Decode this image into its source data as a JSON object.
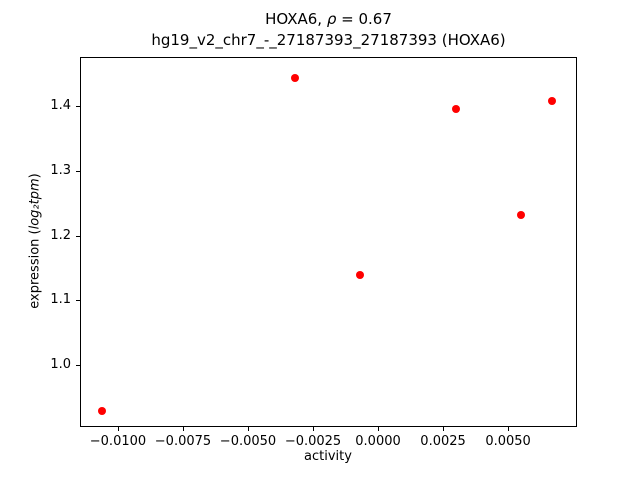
{
  "figure": {
    "title_parts": {
      "prefix": "HOXA6, ",
      "rho": "ρ",
      "suffix": " = 0.67"
    },
    "subtitle": "hg19_v2_chr7_-_27187393_27187393 (HOXA6)"
  },
  "chart_data": {
    "type": "scatter",
    "title": "HOXA6, ρ = 0.67",
    "subtitle": "hg19_v2_chr7_-_27187393_27187393 (HOXA6)",
    "xlabel": "activity",
    "ylabel": "expression (log₂tpm)",
    "ylabel_parts": {
      "prefix": "expression (",
      "math": "log₂tpm",
      "suffix": ")"
    },
    "marker_color": "#ff0000",
    "grid": false,
    "legend": null,
    "xlim": [
      -0.01146,
      0.00765
    ],
    "ylim": [
      0.904,
      1.476
    ],
    "x_ticks": [
      {
        "value": -0.01,
        "label": "−0.0100"
      },
      {
        "value": -0.0075,
        "label": "−0.0075"
      },
      {
        "value": -0.005,
        "label": "−0.0050"
      },
      {
        "value": -0.0025,
        "label": "−0.0025"
      },
      {
        "value": 0.0,
        "label": "0.0000"
      },
      {
        "value": 0.0025,
        "label": "0.0025"
      },
      {
        "value": 0.005,
        "label": "0.0050"
      }
    ],
    "y_ticks": [
      {
        "value": 1.0,
        "label": "1.0"
      },
      {
        "value": 1.1,
        "label": "1.1"
      },
      {
        "value": 1.2,
        "label": "1.2"
      },
      {
        "value": 1.3,
        "label": "1.3"
      },
      {
        "value": 1.4,
        "label": "1.4"
      }
    ],
    "points": [
      {
        "x": -0.0106,
        "y": 0.928
      },
      {
        "x": -0.0032,
        "y": 1.443
      },
      {
        "x": -0.0007,
        "y": 1.139
      },
      {
        "x": 0.003,
        "y": 1.396
      },
      {
        "x": 0.0055,
        "y": 1.231
      },
      {
        "x": 0.0067,
        "y": 1.408
      }
    ]
  }
}
